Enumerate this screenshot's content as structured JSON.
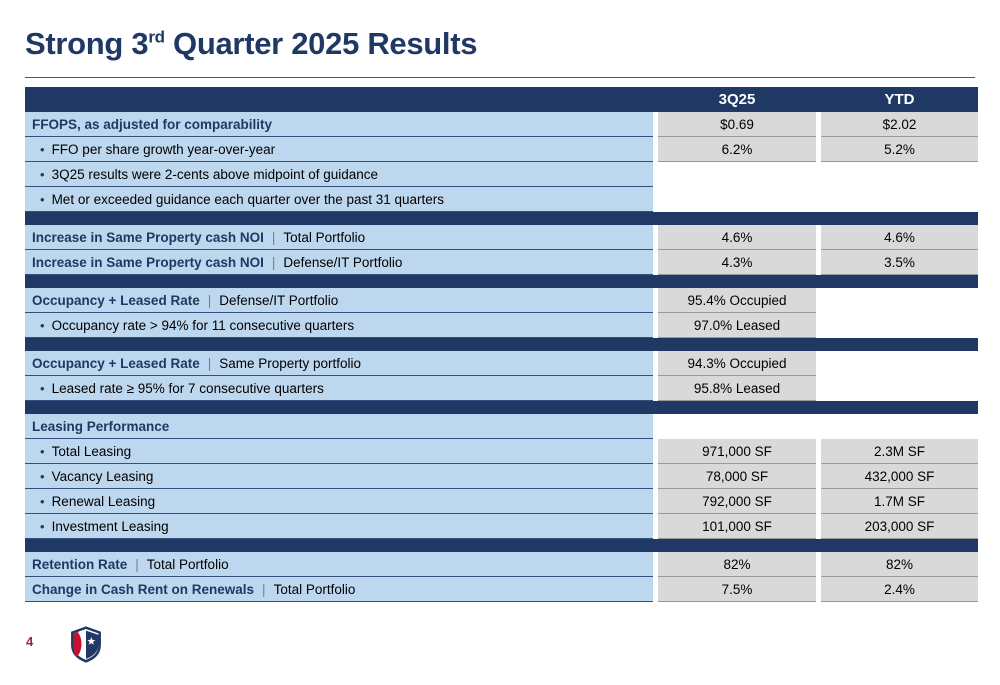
{
  "slide": {
    "title": {
      "part1": "Strong 3",
      "sup": "rd",
      "part2": " Quarter 2025 Results"
    },
    "page_number": "4"
  },
  "colors": {
    "navy": "#1f3864",
    "light_blue": "#bdd7ee",
    "value_gray": "#d9d9d9",
    "logo_red": "#c8102e"
  },
  "table": {
    "columns": [
      "3Q25",
      "YTD"
    ],
    "bullet_char": "•",
    "label_divider": "|",
    "sections": [
      {
        "rows": [
          {
            "type": "header",
            "label": "FFOPS, as adjusted for comparability",
            "q": "$0.69",
            "ytd": "$2.02"
          },
          {
            "type": "bullet",
            "label": "FFO per share growth year-over-year",
            "q": "6.2%",
            "ytd": "5.2%"
          },
          {
            "type": "bullet",
            "label": "3Q25 results were 2-cents above midpoint of guidance",
            "q": null,
            "ytd": null
          },
          {
            "type": "bullet",
            "label": "Met or exceeded guidance each quarter over the past 31 quarters",
            "q": null,
            "ytd": null
          }
        ]
      },
      {
        "rows": [
          {
            "type": "split",
            "bold": "Increase in Same Property cash NOI",
            "rest": "Total Portfolio",
            "q": "4.6%",
            "ytd": "4.6%"
          },
          {
            "type": "split",
            "bold": "Increase in Same Property cash NOI",
            "rest": "Defense/IT Portfolio",
            "q": "4.3%",
            "ytd": "3.5%"
          }
        ]
      },
      {
        "rows": [
          {
            "type": "split",
            "bold": "Occupancy + Leased Rate",
            "rest": "Defense/IT Portfolio",
            "q": "95.4% Occupied",
            "ytd": null
          },
          {
            "type": "bullet",
            "label": "Occupancy rate > 94% for 11 consecutive quarters",
            "q": "97.0% Leased",
            "ytd": null
          }
        ]
      },
      {
        "rows": [
          {
            "type": "split",
            "bold": "Occupancy + Leased Rate",
            "rest": "Same Property portfolio",
            "q": "94.3% Occupied",
            "ytd": null
          },
          {
            "type": "bullet",
            "label": "Leased rate ≥ 95% for 7 consecutive quarters",
            "q": "95.8% Leased",
            "ytd": null
          }
        ]
      },
      {
        "rows": [
          {
            "type": "header",
            "label": "Leasing Performance",
            "q": null,
            "ytd": null
          },
          {
            "type": "bullet",
            "label": "Total Leasing",
            "q": "971,000 SF",
            "ytd": "2.3M SF"
          },
          {
            "type": "bullet",
            "label": "Vacancy Leasing",
            "q": "78,000 SF",
            "ytd": "432,000 SF"
          },
          {
            "type": "bullet",
            "label": "Renewal Leasing",
            "q": "792,000 SF",
            "ytd": "1.7M SF"
          },
          {
            "type": "bullet",
            "label": "Investment Leasing",
            "q": "101,000 SF",
            "ytd": "203,000 SF"
          }
        ]
      },
      {
        "rows": [
          {
            "type": "split",
            "bold": "Retention Rate",
            "rest": "Total Portfolio",
            "q": "82%",
            "ytd": "82%"
          },
          {
            "type": "split",
            "bold": "Change in Cash Rent on Renewals",
            "rest": "Total Portfolio",
            "q": "7.5%",
            "ytd": "2.4%"
          }
        ]
      }
    ]
  }
}
